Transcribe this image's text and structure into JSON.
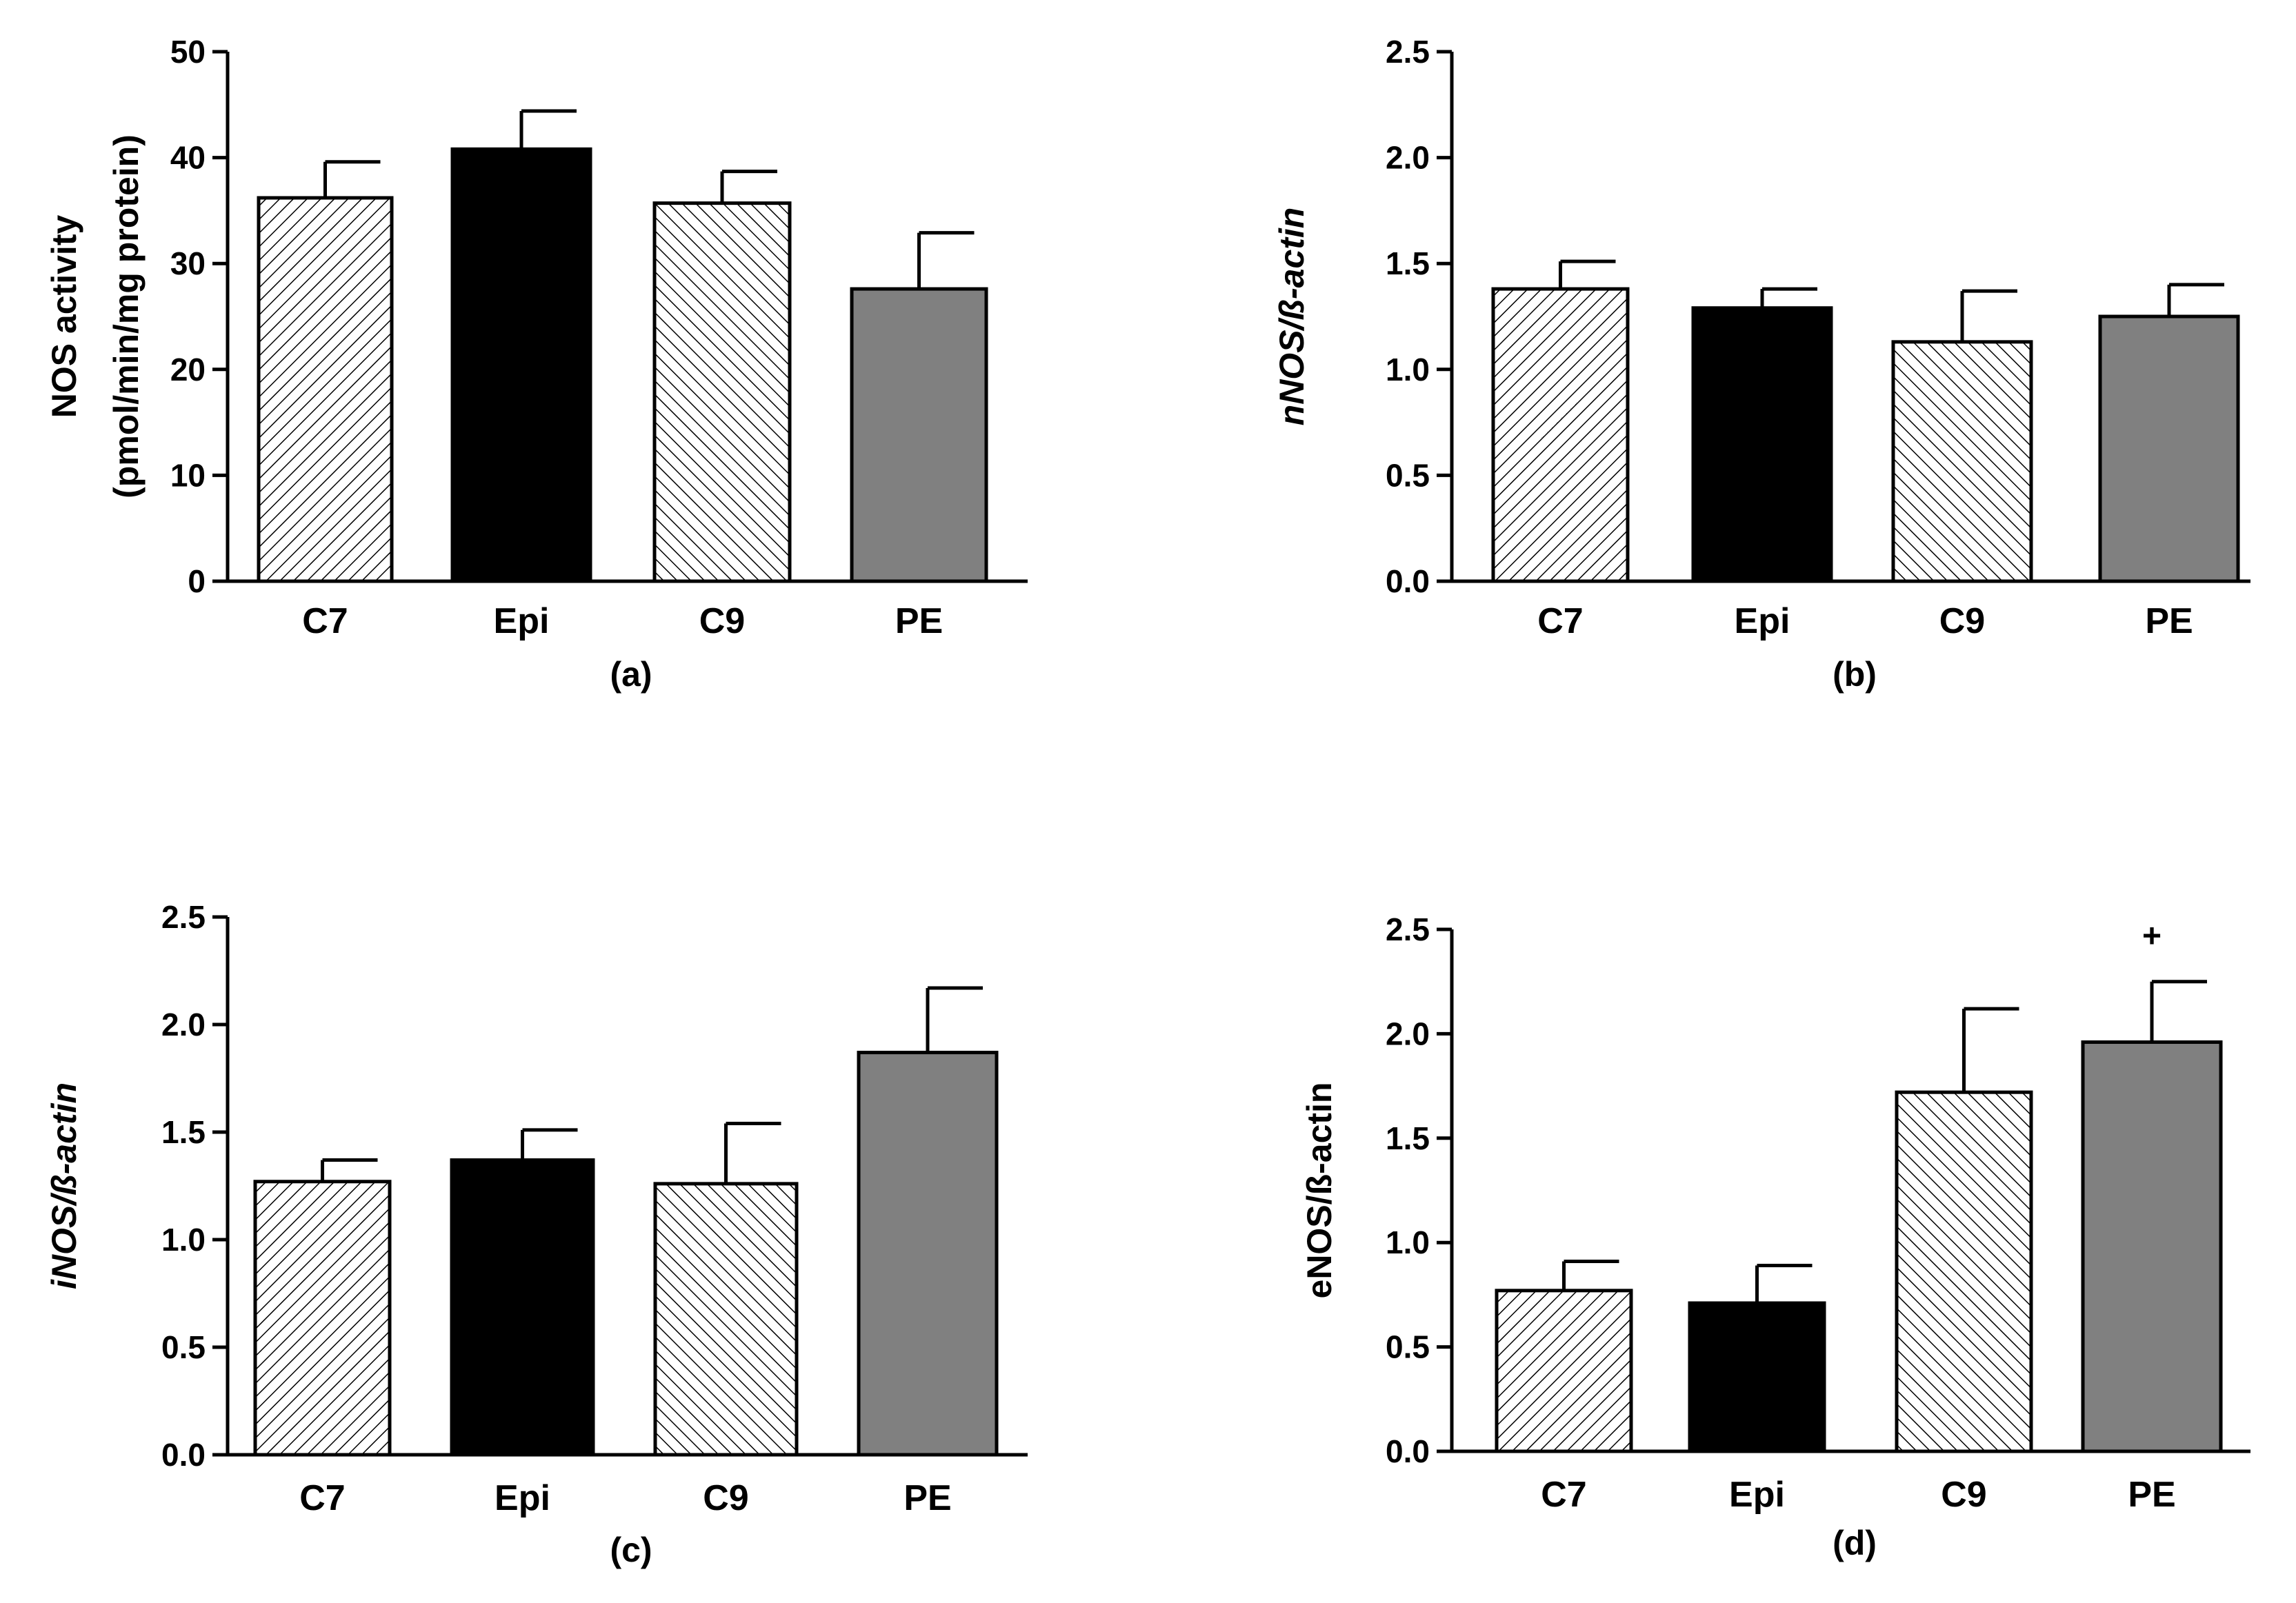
{
  "colors": {
    "axis": "#000000",
    "Epi": "#000000",
    "PE": "#808080",
    "hatch_line": "#000000",
    "background": "#ffffff"
  },
  "chart_data": [
    {
      "type": "bar",
      "panel": "(a)",
      "ylabel_line1": "NOS activity",
      "ylabel_line2": "(pmol/min/mg protein)",
      "ylabel_italic": false,
      "ylim": [
        0,
        50
      ],
      "yticks": [
        0,
        10,
        20,
        30,
        40,
        50
      ],
      "ytick_labels": [
        "0",
        "10",
        "20",
        "30",
        "40",
        "50"
      ],
      "categories": [
        "C7",
        "Epi",
        "C9",
        "PE"
      ],
      "fills": [
        "hatch-fwd",
        "solid-black",
        "hatch-back",
        "solid-gray"
      ],
      "values": [
        36.2,
        40.8,
        35.7,
        27.6
      ],
      "errors": [
        3.4,
        3.6,
        3.0,
        5.3
      ],
      "annotations": []
    },
    {
      "type": "bar",
      "panel": "(b)",
      "ylabel_line1": "nNOS/ß-actin",
      "ylabel_italic": true,
      "ylim": [
        0,
        2.5
      ],
      "yticks": [
        0,
        0.5,
        1.0,
        1.5,
        2.0,
        2.5
      ],
      "ytick_labels": [
        "0.0",
        "0.5",
        "1.0",
        "1.5",
        "2.0",
        "2.5"
      ],
      "categories": [
        "C7",
        "Epi",
        "C9",
        "PE"
      ],
      "fills": [
        "hatch-fwd",
        "solid-black",
        "hatch-back",
        "solid-gray"
      ],
      "values": [
        1.38,
        1.29,
        1.13,
        1.25
      ],
      "errors": [
        0.13,
        0.09,
        0.24,
        0.15
      ],
      "annotations": []
    },
    {
      "type": "bar",
      "panel": "(c)",
      "ylabel_line1": "iNOS/ß-actin",
      "ylabel_italic": true,
      "ylim": [
        0,
        2.5
      ],
      "yticks": [
        0,
        0.5,
        1.0,
        1.5,
        2.0,
        2.5
      ],
      "ytick_labels": [
        "0.0",
        "0.5",
        "1.0",
        "1.5",
        "2.0",
        "2.5"
      ],
      "categories": [
        "C7",
        "Epi",
        "C9",
        "PE"
      ],
      "fills": [
        "hatch-fwd",
        "solid-black",
        "hatch-back",
        "solid-gray"
      ],
      "values": [
        1.27,
        1.37,
        1.26,
        1.87
      ],
      "errors": [
        0.1,
        0.14,
        0.28,
        0.3
      ],
      "annotations": []
    },
    {
      "type": "bar",
      "panel": "(d)",
      "ylabel_line1": "eNOS/ß-actin",
      "ylabel_italic": false,
      "ylim": [
        0,
        2.5
      ],
      "yticks": [
        0,
        0.5,
        1.0,
        1.5,
        2.0,
        2.5
      ],
      "ytick_labels": [
        "0.0",
        "0.5",
        "1.0",
        "1.5",
        "2.0",
        "2.5"
      ],
      "categories": [
        "C7",
        "Epi",
        "C9",
        "PE"
      ],
      "fills": [
        "hatch-fwd",
        "solid-black",
        "hatch-back",
        "solid-gray"
      ],
      "values": [
        0.77,
        0.71,
        1.72,
        1.96
      ],
      "errors": [
        0.14,
        0.18,
        0.4,
        0.29
      ],
      "annotations": [
        {
          "category": "PE",
          "text": "+"
        }
      ]
    }
  ]
}
